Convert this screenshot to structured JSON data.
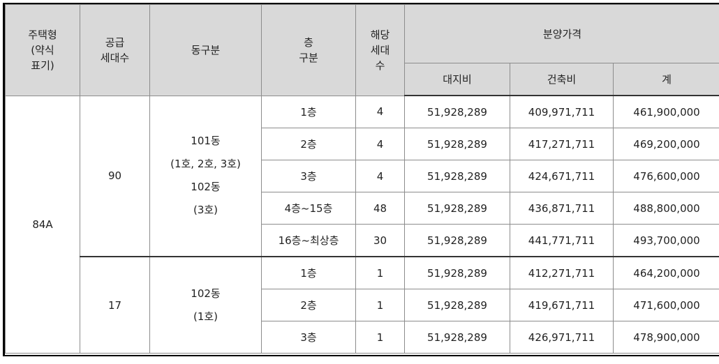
{
  "header": {
    "type_lines": [
      "주택형",
      "(약식",
      "표기)"
    ],
    "supply_lines": [
      "공급",
      "세대수"
    ],
    "dong": "동구분",
    "floor_lines": [
      "층",
      "구분"
    ],
    "units_lines": [
      "해당",
      "세대",
      "수"
    ],
    "price": "분양가격",
    "land": "대지비",
    "building": "건축비",
    "total": "계"
  },
  "type": "84A",
  "groups": [
    {
      "supply": "90",
      "dong_lines": [
        "101동",
        "(1호, 2호, 3호)",
        "102동",
        "(3호)"
      ],
      "rows": [
        {
          "floor": "1층",
          "units": "4",
          "land": "51,928,289",
          "building": "409,971,711",
          "total": "461,900,000"
        },
        {
          "floor": "2층",
          "units": "4",
          "land": "51,928,289",
          "building": "417,271,711",
          "total": "469,200,000"
        },
        {
          "floor": "3층",
          "units": "4",
          "land": "51,928,289",
          "building": "424,671,711",
          "total": "476,600,000"
        },
        {
          "floor": "4층~15층",
          "units": "48",
          "land": "51,928,289",
          "building": "436,871,711",
          "total": "488,800,000"
        },
        {
          "floor": "16층~최상층",
          "units": "30",
          "land": "51,928,289",
          "building": "441,771,711",
          "total": "493,700,000"
        }
      ]
    },
    {
      "supply": "17",
      "dong_lines": [
        "102동",
        "(1호)"
      ],
      "rows": [
        {
          "floor": "1층",
          "units": "1",
          "land": "51,928,289",
          "building": "412,271,711",
          "total": "464,200,000"
        },
        {
          "floor": "2층",
          "units": "1",
          "land": "51,928,289",
          "building": "419,671,711",
          "total": "471,600,000"
        },
        {
          "floor": "3층",
          "units": "1",
          "land": "51,928,289",
          "building": "426,971,711",
          "total": "478,900,000"
        }
      ]
    }
  ]
}
